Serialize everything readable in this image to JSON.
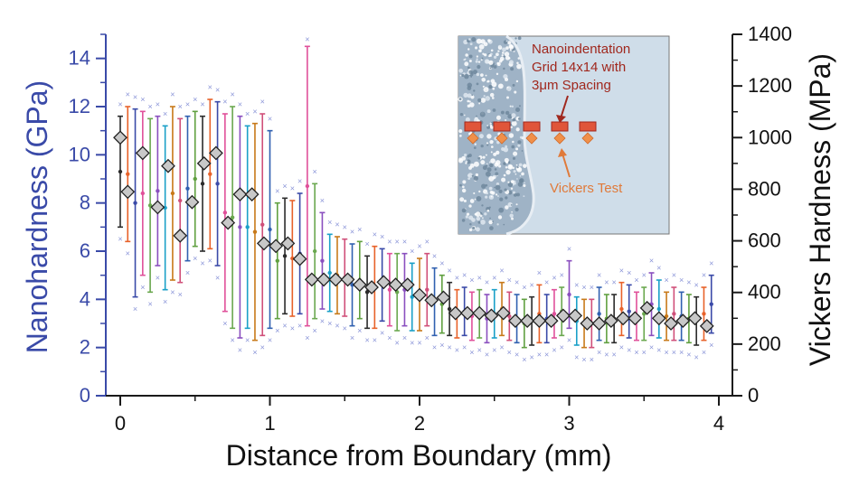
{
  "chart_data": {
    "type": "scatter",
    "title": "",
    "xlabel": "Distance from Boundary (mm)",
    "ylabel_left": "Nanohardness (GPa)",
    "ylabel_right": "Vickers Hardness (MPa)",
    "xlim": [
      -0.1,
      4.1
    ],
    "ylim_left": [
      0,
      15
    ],
    "ylim_right": [
      0,
      1400
    ],
    "xticks": [
      "0",
      "1",
      "2",
      "3",
      "4"
    ],
    "yticks_left": [
      "0",
      "2",
      "4",
      "6",
      "8",
      "10",
      "12",
      "14"
    ],
    "yticks_right": [
      "0",
      "200",
      "400",
      "600",
      "800",
      "1000",
      "1200",
      "1400"
    ],
    "colors": {
      "left_axis": "#3a4aa8",
      "right_axis": "#1a1a1a",
      "vickers_fill": "#c8c8c8",
      "inset_bg": "#cfdde9",
      "inset_red": "#a0281e",
      "inset_orange": "#e07a3a",
      "bar_palette": [
        "#2b2b2b",
        "#e8622a",
        "#3a4aa8",
        "#e0509a",
        "#6aa84f",
        "#8a4fbf",
        "#1aa0c8",
        "#c87a1a",
        "#d0507a",
        "#3060b0",
        "#60a040"
      ]
    },
    "series": [
      {
        "name": "Nanohardness",
        "axis": "left",
        "x": [
          0.0,
          0.05,
          0.1,
          0.15,
          0.2,
          0.25,
          0.3,
          0.35,
          0.4,
          0.45,
          0.5,
          0.55,
          0.6,
          0.65,
          0.7,
          0.75,
          0.8,
          0.85,
          0.9,
          0.95,
          1.0,
          1.05,
          1.1,
          1.15,
          1.2,
          1.25,
          1.3,
          1.35,
          1.4,
          1.45,
          1.5,
          1.55,
          1.6,
          1.65,
          1.7,
          1.75,
          1.8,
          1.85,
          1.9,
          1.95,
          2.0,
          2.05,
          2.1,
          2.15,
          2.2,
          2.25,
          2.3,
          2.35,
          2.4,
          2.45,
          2.5,
          2.55,
          2.6,
          2.65,
          2.7,
          2.75,
          2.8,
          2.85,
          2.9,
          2.95,
          3.0,
          3.05,
          3.1,
          3.15,
          3.2,
          3.25,
          3.3,
          3.35,
          3.4,
          3.45,
          3.5,
          3.55,
          3.6,
          3.65,
          3.7,
          3.75,
          3.8,
          3.85,
          3.9,
          3.95
        ],
        "mean": [
          9.3,
          9.2,
          8.0,
          8.4,
          7.9,
          8.5,
          7.8,
          8.4,
          8.1,
          8.6,
          9.0,
          8.8,
          9.2,
          8.8,
          7.6,
          7.4,
          7.0,
          7.0,
          6.8,
          7.1,
          6.9,
          5.6,
          5.8,
          5.7,
          5.9,
          8.7,
          6.0,
          5.6,
          5.1,
          5.0,
          4.9,
          4.6,
          4.8,
          4.3,
          4.5,
          4.6,
          4.4,
          4.3,
          4.4,
          4.1,
          4.2,
          4.4,
          3.9,
          3.8,
          3.6,
          3.4,
          3.5,
          3.3,
          3.4,
          3.2,
          3.4,
          3.6,
          3.3,
          3.2,
          3.0,
          3.1,
          3.4,
          3.2,
          3.4,
          3.5,
          4.2,
          3.1,
          3.0,
          3.0,
          3.4,
          3.2,
          3.2,
          3.6,
          3.5,
          3.3,
          3.4,
          3.8,
          3.6,
          3.3,
          3.4,
          3.3,
          3.2,
          3.1,
          3.4,
          3.8
        ],
        "err": [
          2.3,
          2.8,
          3.9,
          3.4,
          3.6,
          3.1,
          3.4,
          3.6,
          3.4,
          3.0,
          2.8,
          2.8,
          3.1,
          3.4,
          4.1,
          4.6,
          4.6,
          4.2,
          4.5,
          4.6,
          4.1,
          2.4,
          2.4,
          2.4,
          2.5,
          5.8,
          2.8,
          2.0,
          1.6,
          1.6,
          1.6,
          1.7,
          1.6,
          1.5,
          1.7,
          1.5,
          1.5,
          1.6,
          1.5,
          1.4,
          1.5,
          1.5,
          1.4,
          1.2,
          1.1,
          1.0,
          1.0,
          1.0,
          1.0,
          1.0,
          1.0,
          1.1,
          1.0,
          1.0,
          1.0,
          1.0,
          1.2,
          1.0,
          1.0,
          1.0,
          1.4,
          1.0,
          1.0,
          1.0,
          1.1,
          1.0,
          1.0,
          1.1,
          1.1,
          1.0,
          1.1,
          1.3,
          1.2,
          1.0,
          1.1,
          1.0,
          1.0,
          1.0,
          1.1,
          1.2
        ]
      },
      {
        "name": "Vickers Hardness",
        "axis": "right",
        "x": [
          0.0,
          0.05,
          0.15,
          0.25,
          0.32,
          0.4,
          0.48,
          0.56,
          0.64,
          0.72,
          0.8,
          0.88,
          0.96,
          1.04,
          1.12,
          1.2,
          1.28,
          1.36,
          1.44,
          1.52,
          1.6,
          1.68,
          1.76,
          1.84,
          1.92,
          2.0,
          2.08,
          2.16,
          2.24,
          2.32,
          2.4,
          2.48,
          2.56,
          2.64,
          2.72,
          2.8,
          2.88,
          2.96,
          3.04,
          3.12,
          3.2,
          3.28,
          3.36,
          3.44,
          3.52,
          3.6,
          3.68,
          3.76,
          3.84,
          3.92
        ],
        "values": [
          1000,
          790,
          940,
          730,
          890,
          620,
          750,
          900,
          940,
          670,
          780,
          780,
          590,
          580,
          590,
          530,
          450,
          450,
          450,
          450,
          430,
          420,
          440,
          430,
          430,
          390,
          370,
          380,
          320,
          320,
          320,
          310,
          320,
          290,
          290,
          290,
          290,
          310,
          310,
          280,
          280,
          290,
          300,
          300,
          340,
          300,
          280,
          290,
          300,
          270
        ]
      }
    ],
    "outlier_marks": "x markers above and below each error bar",
    "inset": {
      "annotation_top_line1": "Nanoindentation",
      "annotation_top_line2": "Grid 14x14 with",
      "annotation_top_line3": "3μm Spacing",
      "annotation_bottom": "Vickers Test",
      "legend_placement": "top-right"
    }
  }
}
